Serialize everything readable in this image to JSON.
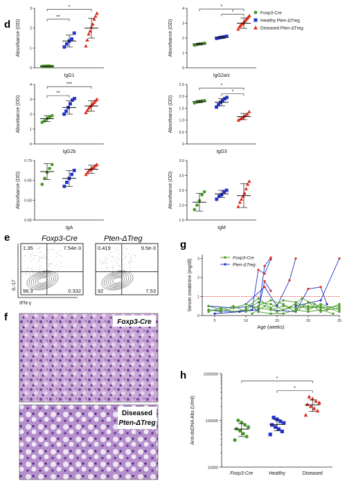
{
  "panels": {
    "d": "d",
    "e": "e",
    "f": "f",
    "g": "g",
    "h": "h"
  },
  "legend": {
    "items": [
      {
        "name": "Foxp3-Cre",
        "color": "#4a9a2a",
        "shape": "circle"
      },
      {
        "name": "Healthy Pten-ΔTreg",
        "color": "#2233cc",
        "shape": "square"
      },
      {
        "name": "Diseased Pten-ΔTreg",
        "color": "#dd2a1a",
        "shape": "triangle"
      }
    ]
  },
  "chart_data": [
    {
      "type": "scatter",
      "panel": "d",
      "xlabel": "IgG1",
      "ylabel": "Absorbance (OD)",
      "ylim": [
        0,
        3
      ],
      "yticks": [
        "0",
        "1",
        "2",
        "3"
      ],
      "series": [
        {
          "name": "Foxp3-Cre",
          "values": [
            0.07,
            0.08,
            0.08,
            0.09,
            0.08,
            0.07
          ],
          "mean": 0.08,
          "err": 0.01
        },
        {
          "name": "Healthy Pten-ΔTreg",
          "values": [
            1.05,
            1.2,
            1.35,
            1.45,
            1.75
          ],
          "mean": 1.35,
          "err": 0.3
        },
        {
          "name": "Diseased Pten-ΔTreg",
          "values": [
            1.1,
            1.4,
            1.7,
            1.85,
            2.05,
            2.2,
            2.45,
            2.6,
            2.75
          ],
          "mean": 2.0,
          "err": 0.5
        }
      ],
      "brackets": [
        {
          "from": 0,
          "to": 1,
          "label": "**",
          "y": 2.45
        },
        {
          "from": 0,
          "to": 2,
          "label": "*",
          "y": 2.95
        }
      ]
    },
    {
      "type": "scatter",
      "panel": "d",
      "xlabel": "IgG2a/c",
      "ylabel": "Absorbance (OD)",
      "ylim": [
        0,
        4
      ],
      "yticks": [
        "0",
        "1",
        "2",
        "3",
        "4"
      ],
      "series": [
        {
          "name": "Foxp3-Cre",
          "values": [
            1.52,
            1.56,
            1.6,
            1.62,
            1.66
          ],
          "mean": 1.6,
          "err": 0.06
        },
        {
          "name": "Healthy Pten-ΔTreg",
          "values": [
            1.98,
            2.02,
            2.05,
            2.08,
            2.12
          ],
          "mean": 2.05,
          "err": 0.06
        },
        {
          "name": "Diseased Pten-ΔTreg",
          "values": [
            2.6,
            2.75,
            2.85,
            2.95,
            3.0,
            3.1,
            3.2,
            3.3,
            3.4,
            3.5
          ],
          "mean": 3.0,
          "err": 0.35
        }
      ],
      "brackets": [
        {
          "from": 0,
          "to": 2,
          "label": "*",
          "y": 3.95
        },
        {
          "from": 1,
          "to": 2,
          "label": "*",
          "y": 3.6
        }
      ]
    },
    {
      "type": "scatter",
      "panel": "d",
      "xlabel": "IgG2b",
      "ylabel": "Absorbance (OD)",
      "ylim": [
        0,
        4
      ],
      "yticks": [
        "0",
        "1",
        "2",
        "3",
        "4"
      ],
      "series": [
        {
          "name": "Foxp3-Cre",
          "values": [
            1.45,
            1.55,
            1.7,
            1.8,
            1.9
          ],
          "mean": 1.7,
          "err": 0.2
        },
        {
          "name": "Healthy Pten-ΔTreg",
          "values": [
            2.0,
            2.2,
            2.45,
            2.7,
            2.95,
            3.05
          ],
          "mean": 2.45,
          "err": 0.45
        },
        {
          "name": "Diseased Pten-ΔTreg",
          "values": [
            2.1,
            2.25,
            2.4,
            2.5,
            2.6,
            2.7,
            2.8,
            2.9,
            3.0
          ],
          "mean": 2.55,
          "err": 0.35
        }
      ],
      "brackets": [
        {
          "from": 0,
          "to": 1,
          "label": "**",
          "y": 3.25
        },
        {
          "from": 0,
          "to": 2,
          "label": "***",
          "y": 3.85
        }
      ]
    },
    {
      "type": "scatter",
      "panel": "d",
      "xlabel": "IgG3",
      "ylabel": "Absorbance (OD)",
      "ylim": [
        0,
        2.5
      ],
      "yticks": [
        "0",
        "0.5",
        "1.0",
        "1.5",
        "2.0",
        "2.5"
      ],
      "series": [
        {
          "name": "Foxp3-Cre",
          "values": [
            1.72,
            1.76,
            1.78,
            1.8,
            1.82
          ],
          "mean": 1.78,
          "err": 0.05
        },
        {
          "name": "Healthy Pten-ΔTreg",
          "values": [
            1.55,
            1.65,
            1.75,
            1.82,
            1.9,
            1.95
          ],
          "mean": 1.75,
          "err": 0.15
        },
        {
          "name": "Diseased Pten-ΔTreg",
          "values": [
            1.0,
            1.05,
            1.1,
            1.15,
            1.2,
            1.25,
            1.35
          ],
          "mean": 1.15,
          "err": 0.13
        }
      ],
      "brackets": [
        {
          "from": 0,
          "to": 2,
          "label": "*",
          "y": 2.35
        },
        {
          "from": 1,
          "to": 2,
          "label": "*",
          "y": 2.1
        }
      ]
    },
    {
      "type": "scatter",
      "panel": "d",
      "xlabel": "IgA",
      "ylabel": "Absorbance (OD)",
      "ylim": [
        0.55,
        0.7
      ],
      "yticks": [
        "0.55",
        "0.60",
        "0.65",
        "0.70"
      ],
      "series": [
        {
          "name": "Foxp3-Cre",
          "values": [
            0.64,
            0.655,
            0.67,
            0.68,
            0.69
          ],
          "mean": 0.672,
          "err": 0.02
        },
        {
          "name": "Healthy Pten-ΔTreg",
          "values": [
            0.635,
            0.645,
            0.655,
            0.665,
            0.675
          ],
          "mean": 0.655,
          "err": 0.02
        },
        {
          "name": "Diseased Pten-ΔTreg",
          "values": [
            0.665,
            0.67,
            0.675,
            0.678,
            0.68,
            0.683,
            0.687,
            0.69
          ],
          "mean": 0.678,
          "err": 0.01
        }
      ],
      "brackets": []
    },
    {
      "type": "scatter",
      "panel": "d",
      "xlabel": "IgM",
      "ylabel": "Absorbance (OD)",
      "ylim": [
        1.5,
        3.5
      ],
      "yticks": [
        "1.5",
        "2.0",
        "2.5",
        "3.0",
        "3.5"
      ],
      "series": [
        {
          "name": "Foxp3-Cre",
          "values": [
            1.85,
            2.0,
            2.15,
            2.35,
            2.45
          ],
          "mean": 2.1,
          "err": 0.3
        },
        {
          "name": "Healthy Pten-ΔTreg",
          "values": [
            2.2,
            2.3,
            2.35,
            2.45,
            2.5
          ],
          "mean": 2.38,
          "err": 0.12
        },
        {
          "name": "Diseased Pten-ΔTreg",
          "values": [
            1.95,
            2.1,
            2.2,
            2.3,
            2.4,
            2.55,
            2.7,
            2.8
          ],
          "mean": 2.32,
          "err": 0.4
        }
      ],
      "brackets": []
    },
    {
      "type": "line",
      "panel": "g",
      "xlabel": "Age (weeks)",
      "ylabel": "Serum creatinine (mg/dl)",
      "xlim": [
        3,
        25
      ],
      "ylim": [
        0,
        3.2
      ],
      "xticks": [
        5,
        10,
        15,
        20,
        25
      ],
      "yticks": [
        0,
        1,
        2,
        3
      ],
      "threshold": 1,
      "legend": [
        "Foxp3-Cre",
        "Pten-ΔTreg"
      ],
      "series": [
        {
          "name": "Pten-ΔTreg",
          "points": [
            [
              4,
              0.3
            ],
            [
              8,
              0.2
            ],
            [
              11,
              0.3
            ],
            [
              12,
              2.4
            ],
            [
              13,
              2.2
            ],
            [
              14,
              2.95
            ]
          ]
        },
        {
          "name": "Pten-ΔTreg",
          "points": [
            [
              4,
              0.5
            ],
            [
              8,
              0.4
            ],
            [
              11,
              0.5
            ],
            [
              12,
              0.2
            ],
            [
              13,
              2.6
            ],
            [
              14,
              3.05
            ]
          ]
        },
        {
          "name": "Pten-ΔTreg",
          "points": [
            [
              5,
              0.1
            ],
            [
              9,
              0.2
            ],
            [
              12,
              0.3
            ],
            [
              13,
              1.8
            ],
            [
              14,
              1.3
            ]
          ]
        },
        {
          "name": "Pten-ΔTreg",
          "points": [
            [
              10,
              0.6
            ],
            [
              13,
              1.5
            ],
            [
              15,
              0.5
            ],
            [
              17,
              1.85
            ],
            [
              18,
              3.0
            ]
          ]
        },
        {
          "name": "Pten-ΔTreg",
          "points": [
            [
              14,
              0.3
            ],
            [
              18,
              0.2
            ],
            [
              20,
              1.4
            ],
            [
              22,
              1.5
            ],
            [
              23,
              0.6
            ]
          ]
        },
        {
          "name": "Pten-ΔTreg",
          "points": [
            [
              18,
              0.5
            ],
            [
              22,
              0.8
            ],
            [
              25,
              3.0
            ]
          ]
        },
        {
          "name": "Foxp3-Cre",
          "points": [
            [
              4,
              0.3
            ],
            [
              6,
              0.2
            ],
            [
              8,
              0.4
            ],
            [
              10,
              0.6
            ],
            [
              12,
              0.4
            ],
            [
              14,
              0.3
            ],
            [
              16,
              0.5
            ],
            [
              18,
              0.4
            ],
            [
              20,
              0.5
            ],
            [
              22,
              0.4
            ],
            [
              25,
              0.5
            ]
          ]
        },
        {
          "name": "Foxp3-Cre",
          "points": [
            [
              4,
              0.2
            ],
            [
              6,
              0.4
            ],
            [
              8,
              0.2
            ],
            [
              10,
              0.3
            ],
            [
              12,
              0.7
            ],
            [
              14,
              0.6
            ],
            [
              16,
              0.3
            ],
            [
              18,
              0.6
            ],
            [
              20,
              0.3
            ],
            [
              22,
              0.6
            ],
            [
              25,
              0.3
            ]
          ]
        },
        {
          "name": "Foxp3-Cre",
          "points": [
            [
              4,
              0.5
            ],
            [
              6,
              0.3
            ],
            [
              8,
              0.5
            ],
            [
              10,
              0.2
            ],
            [
              12,
              0.5
            ],
            [
              14,
              0.8
            ],
            [
              16,
              0.6
            ],
            [
              18,
              0.2
            ],
            [
              20,
              0.7
            ],
            [
              22,
              0.2
            ],
            [
              25,
              0.6
            ]
          ]
        },
        {
          "name": "Foxp3-Cre",
          "points": [
            [
              10,
              0.4
            ],
            [
              12,
              0.9
            ],
            [
              14,
              0.4
            ],
            [
              16,
              0.8
            ],
            [
              18,
              0.7
            ],
            [
              20,
              0.4
            ],
            [
              22,
              0.5
            ],
            [
              25,
              0.2
            ]
          ]
        },
        {
          "name": "Foxp3-Cre",
          "points": [
            [
              11,
              0.1
            ],
            [
              13,
              0.5
            ],
            [
              15,
              0.2
            ],
            [
              17,
              0.4
            ],
            [
              19,
              0.9
            ],
            [
              21,
              0.6
            ],
            [
              23,
              0.3
            ],
            [
              25,
              0.4
            ]
          ]
        },
        {
          "name": "Foxp3-Cre",
          "points": [
            [
              12,
              0.2
            ],
            [
              14,
              0.1
            ],
            [
              16,
              0.1
            ],
            [
              18,
              0.3
            ],
            [
              20,
              0.2
            ],
            [
              22,
              0.3
            ],
            [
              24,
              0.1
            ]
          ]
        }
      ]
    },
    {
      "type": "scatter",
      "panel": "h",
      "ylabel": "Anti-dsDNA Abs (U/ml)",
      "yscale": "log",
      "ylim": [
        10000,
        1000000
      ],
      "yticks": [
        "10000",
        "100000",
        "1000000"
      ],
      "categories": [
        "Foxp3-Cre",
        "Healthy",
        "Diseased"
      ],
      "series": [
        {
          "name": "Foxp3-Cre",
          "values": [
            38000,
            45000,
            52000,
            60000,
            66000,
            72000,
            80000,
            90000,
            100000
          ],
          "mean": 65000,
          "err": 20000
        },
        {
          "name": "Healthy",
          "values": [
            50000,
            58000,
            65000,
            72000,
            80000,
            88000,
            95000,
            105000,
            115000
          ],
          "mean": 82000,
          "err": 22000
        },
        {
          "name": "Diseased",
          "values": [
            130000,
            160000,
            180000,
            200000,
            220000,
            240000,
            260000,
            290000,
            320000
          ],
          "mean": 215000,
          "err": 60000
        }
      ],
      "brackets": [
        {
          "from": 0,
          "to": 2,
          "label": "*",
          "y": 700000
        },
        {
          "from": 1,
          "to": 2,
          "label": "*",
          "y": 430000
        }
      ]
    }
  ],
  "flow": {
    "xlabel": "IFN-γ",
    "ylabel": "IL-17",
    "plots": [
      {
        "title": "Foxp3-Cre",
        "ul": "1.35",
        "ur": "7.54e-3",
        "ll": "98.3",
        "lr": "0.332"
      },
      {
        "title": "Pten-ΔTreg",
        "ul": "0.419",
        "ur": "9.5e-3",
        "ll": "92",
        "lr": "7.53"
      }
    ]
  },
  "histology": [
    {
      "label_line1": "Foxp3-Cre",
      "label_line2": ""
    },
    {
      "label_line1": "Diseased",
      "label_line2": "Pten-ΔTreg"
    }
  ]
}
